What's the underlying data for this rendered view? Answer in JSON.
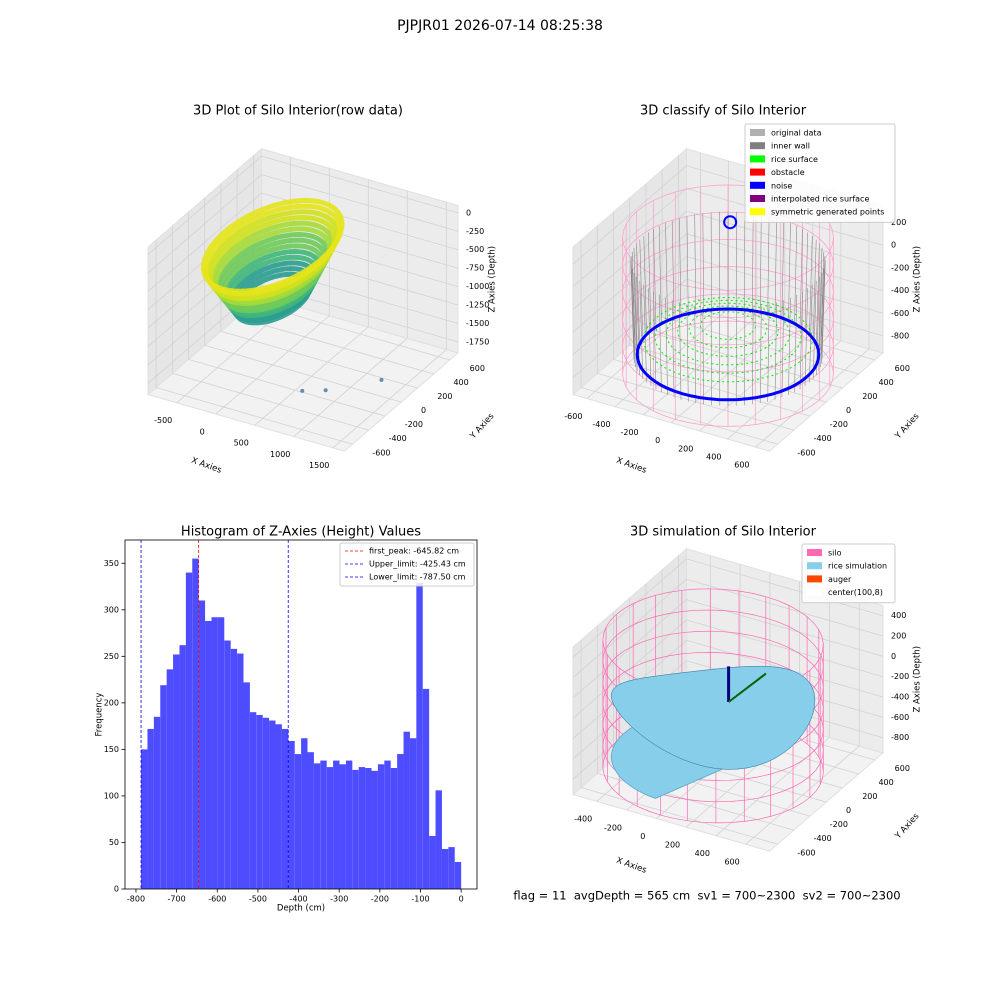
{
  "title": "PJPJR01 2026-07-14 08:25:38",
  "footer": "flag = 11  avgDepth = 565 cm  sv1 = 700~2300  sv2 = 700~2300",
  "chart_data": [
    {
      "type": "scatter3d",
      "title": "3D Plot of Silo Interior(row data)",
      "xlabel": "X Axies",
      "ylabel": "Y Axies",
      "zlabel": "Z Axies (Depth)",
      "xlim": [
        -870,
        1650
      ],
      "ylim": [
        -700,
        700
      ],
      "zlim": [
        -1900,
        100
      ],
      "xticks": [
        -500,
        0,
        500,
        1000,
        1500
      ],
      "yticks": [
        -600,
        -400,
        -200,
        0,
        200,
        400,
        600
      ],
      "zticks": [
        0,
        -250,
        -500,
        -750,
        -1000,
        -1250,
        -1500,
        -1750
      ]
    },
    {
      "type": "classify3d",
      "title": "3D classify of Silo Interior",
      "xlabel": "X Axies",
      "ylabel": "Y Axies",
      "zlabel": "Z Axies (Depth)",
      "xlim": [
        -700,
        700
      ],
      "ylim": [
        -700,
        700
      ],
      "zlim": [
        -950,
        350
      ],
      "xticks": [
        -600,
        -400,
        -200,
        0,
        200,
        400,
        600
      ],
      "yticks": [
        -600,
        -400,
        -200,
        0,
        200,
        400,
        600
      ],
      "zticks": [
        200,
        0,
        -200,
        -400,
        -600,
        -800
      ],
      "series": [
        {
          "name": "original data",
          "color": "#b0b0b0"
        },
        {
          "name": "inner wall",
          "color": "#808080"
        },
        {
          "name": "rice surface",
          "color": "#00ff00"
        },
        {
          "name": "obstacle",
          "color": "#ff0000"
        },
        {
          "name": "noise",
          "color": "#0000ff"
        },
        {
          "name": "interpolated rice surface",
          "color": "#800080"
        },
        {
          "name": "symmetric generated points",
          "color": "#ffff00"
        }
      ]
    },
    {
      "type": "histogram",
      "title": "Histogram of Z-Axies (Height) Values",
      "xlabel": "Depth (cm)",
      "ylabel": "Frequency",
      "color": "#4d4dff",
      "bins": [
        -787.5,
        -771.75,
        -756,
        -740.25,
        -724.5,
        -708.75,
        -693,
        -677.25,
        -661.5,
        -645.75,
        -630,
        -614.25,
        -598.5,
        -582.75,
        -567,
        -551.25,
        -535.5,
        -519.75,
        -504,
        -488.25,
        -472.5,
        -456.75,
        -441,
        -425.25,
        -409.5,
        -393.75,
        -378,
        -362.25,
        -346.5,
        -330.75,
        -315,
        -299.25,
        -283.5,
        -267.75,
        -252,
        -236.25,
        -220.5,
        -204.75,
        -189,
        -173.25,
        -157.5,
        -141.75,
        -126,
        -110.25,
        -94.5,
        -78.75,
        -63,
        -47.25,
        -31.5,
        -15.75,
        0
      ],
      "values": [
        150,
        172,
        185,
        219,
        236,
        252,
        262,
        340,
        355,
        310,
        288,
        292,
        292,
        267,
        258,
        253,
        222,
        190,
        187,
        184,
        181,
        177,
        172,
        159,
        145,
        162,
        147,
        135,
        138,
        131,
        138,
        134,
        138,
        128,
        131,
        130,
        127,
        134,
        138,
        130,
        145,
        169,
        162,
        329,
        215,
        57,
        106,
        43,
        45,
        29
      ],
      "xlim": [
        -827,
        39
      ],
      "ylim": [
        0,
        375
      ],
      "xticks": [
        -800,
        -700,
        -600,
        -500,
        -400,
        -300,
        -200,
        -100,
        0
      ],
      "yticks": [
        0,
        50,
        100,
        150,
        200,
        250,
        300,
        350
      ],
      "lines": [
        {
          "label": "first_peak: -645.82 cm",
          "value": -645.82,
          "color": "#ff0000"
        },
        {
          "label": "Upper_limit: -425.43 cm",
          "value": -425.43,
          "color": "#0000ff"
        },
        {
          "label": "Lower_limit: -787.50 cm",
          "value": -787.5,
          "color": "#0000ff"
        }
      ],
      "legend": "upper right"
    },
    {
      "type": "simulation3d",
      "title": "3D simulation of Silo Interior",
      "xlabel": "X Axies",
      "ylabel": "Y Axies",
      "zlabel": "Z Axies (Depth)",
      "xlim": [
        -560,
        760
      ],
      "ylim": [
        -700,
        700
      ],
      "zlim": [
        -950,
        500
      ],
      "xticks": [
        -400,
        -200,
        0,
        200,
        400,
        600
      ],
      "yticks": [
        -600,
        -400,
        -200,
        0,
        200,
        400,
        600
      ],
      "zticks": [
        400,
        200,
        0,
        -200,
        -400,
        -600,
        -800
      ],
      "series": [
        {
          "name": "silo",
          "color": "#ff69b4"
        },
        {
          "name": "rice simulation",
          "color": "#87ceeb"
        },
        {
          "name": "auger",
          "color": "#ff4500"
        },
        {
          "name": "center(100,8)",
          "color": "#ffffff"
        }
      ]
    }
  ]
}
